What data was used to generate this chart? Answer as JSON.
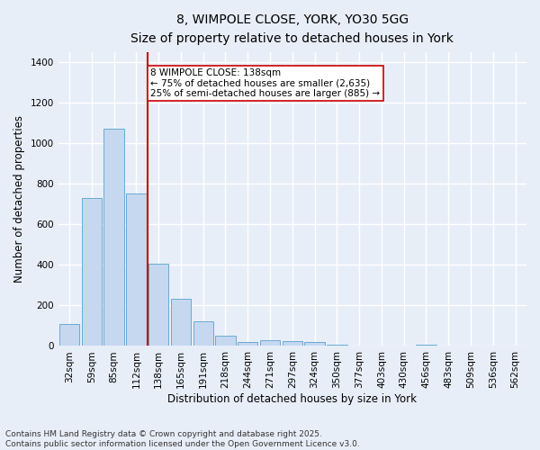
{
  "title_line1": "8, WIMPOLE CLOSE, YORK, YO30 5GG",
  "title_line2": "Size of property relative to detached houses in York",
  "xlabel": "Distribution of detached houses by size in York",
  "ylabel": "Number of detached properties",
  "categories": [
    "32sqm",
    "59sqm",
    "85sqm",
    "112sqm",
    "138sqm",
    "165sqm",
    "191sqm",
    "218sqm",
    "244sqm",
    "271sqm",
    "297sqm",
    "324sqm",
    "350sqm",
    "377sqm",
    "403sqm",
    "430sqm",
    "456sqm",
    "483sqm",
    "509sqm",
    "536sqm",
    "562sqm"
  ],
  "values": [
    110,
    730,
    1070,
    750,
    405,
    235,
    120,
    50,
    20,
    30,
    25,
    18,
    5,
    0,
    0,
    0,
    8,
    0,
    0,
    0,
    0
  ],
  "bar_color": "#c5d8f0",
  "bar_edge_color": "#6aaad4",
  "highlight_index": 4,
  "highlight_line_color": "#cc0000",
  "annotation_text": "8 WIMPOLE CLOSE: 138sqm\n← 75% of detached houses are smaller (2,635)\n25% of semi-detached houses are larger (885) →",
  "annotation_box_facecolor": "#ffffff",
  "annotation_box_edgecolor": "#cc0000",
  "ylim": [
    0,
    1450
  ],
  "yticks": [
    0,
    200,
    400,
    600,
    800,
    1000,
    1200,
    1400
  ],
  "footer_line1": "Contains HM Land Registry data © Crown copyright and database right 2025.",
  "footer_line2": "Contains public sector information licensed under the Open Government Licence v3.0.",
  "background_color": "#e8eef8",
  "grid_color": "#ffffff",
  "title_fontsize": 10,
  "subtitle_fontsize": 9,
  "axis_label_fontsize": 8.5,
  "tick_fontsize": 7.5,
  "annotation_fontsize": 7.5,
  "footer_fontsize": 6.5
}
